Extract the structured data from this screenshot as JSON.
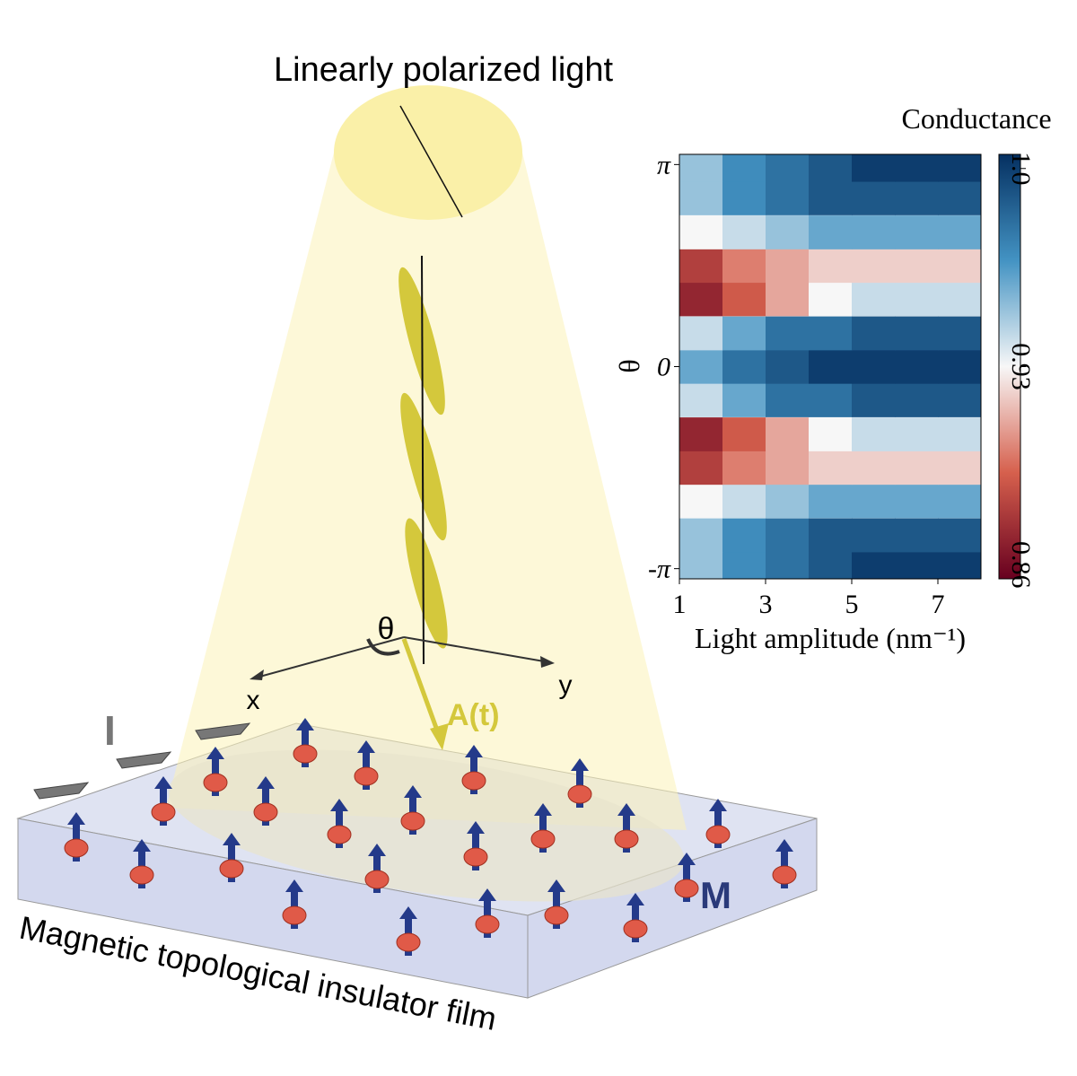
{
  "diagram": {
    "light_label": "Linearly polarized light",
    "angle_label": "θ",
    "x_axis": "x",
    "y_axis": "y",
    "field_label": "A(t)",
    "current_label": "I",
    "magnetization_label": "M",
    "film_label": "Magnetic topological insulator film"
  },
  "chart_data": {
    "type": "heatmap",
    "colorbar_label": "Conductance",
    "x_label": "Light amplitude (nm⁻¹)",
    "y_label": "θ",
    "x": [
      1.5,
      2.5,
      3.5,
      4.5,
      5.5,
      6.5,
      7.5
    ],
    "y": [
      -3.14,
      -2.62,
      -2.09,
      -1.57,
      -1.05,
      -0.52,
      0,
      0.52,
      1.05,
      1.57,
      2.09,
      2.62,
      3.14
    ],
    "values": [
      [
        0.95,
        0.97,
        0.98,
        0.99,
        1.0,
        1.0,
        1.0
      ],
      [
        0.95,
        0.97,
        0.98,
        0.99,
        0.99,
        0.99,
        0.99
      ],
      [
        0.93,
        0.94,
        0.95,
        0.96,
        0.96,
        0.96,
        0.96
      ],
      [
        0.88,
        0.9,
        0.91,
        0.92,
        0.92,
        0.92,
        0.92
      ],
      [
        0.87,
        0.89,
        0.91,
        0.93,
        0.94,
        0.94,
        0.94
      ],
      [
        0.94,
        0.96,
        0.98,
        0.98,
        0.99,
        0.99,
        0.99
      ],
      [
        0.96,
        0.98,
        0.99,
        1.0,
        1.0,
        1.0,
        1.0
      ],
      [
        0.94,
        0.96,
        0.98,
        0.98,
        0.99,
        0.99,
        0.99
      ],
      [
        0.87,
        0.89,
        0.91,
        0.93,
        0.94,
        0.94,
        0.94
      ],
      [
        0.88,
        0.9,
        0.91,
        0.92,
        0.92,
        0.92,
        0.92
      ],
      [
        0.93,
        0.94,
        0.95,
        0.96,
        0.96,
        0.96,
        0.96
      ],
      [
        0.95,
        0.97,
        0.98,
        0.99,
        0.99,
        0.99,
        0.99
      ],
      [
        0.95,
        0.97,
        0.98,
        0.99,
        1.0,
        1.0,
        1.0
      ]
    ],
    "xlim": [
      1,
      8
    ],
    "xticks": [
      1,
      3,
      5,
      7
    ],
    "ylim": [
      -3.3,
      3.3
    ],
    "yticks": [
      {
        "value": -3.1416,
        "label": "-π"
      },
      0,
      {
        "value": 3.1416,
        "label": "π"
      }
    ],
    "clim": [
      0.855,
      1.005
    ],
    "cticks": [
      0.86,
      0.93,
      {
        "value": 1,
        "label": "1.0"
      }
    ],
    "colormap": [
      "#67001f",
      "#d6604d",
      "#f7f7f7",
      "#4393c3",
      "#053061"
    ]
  }
}
